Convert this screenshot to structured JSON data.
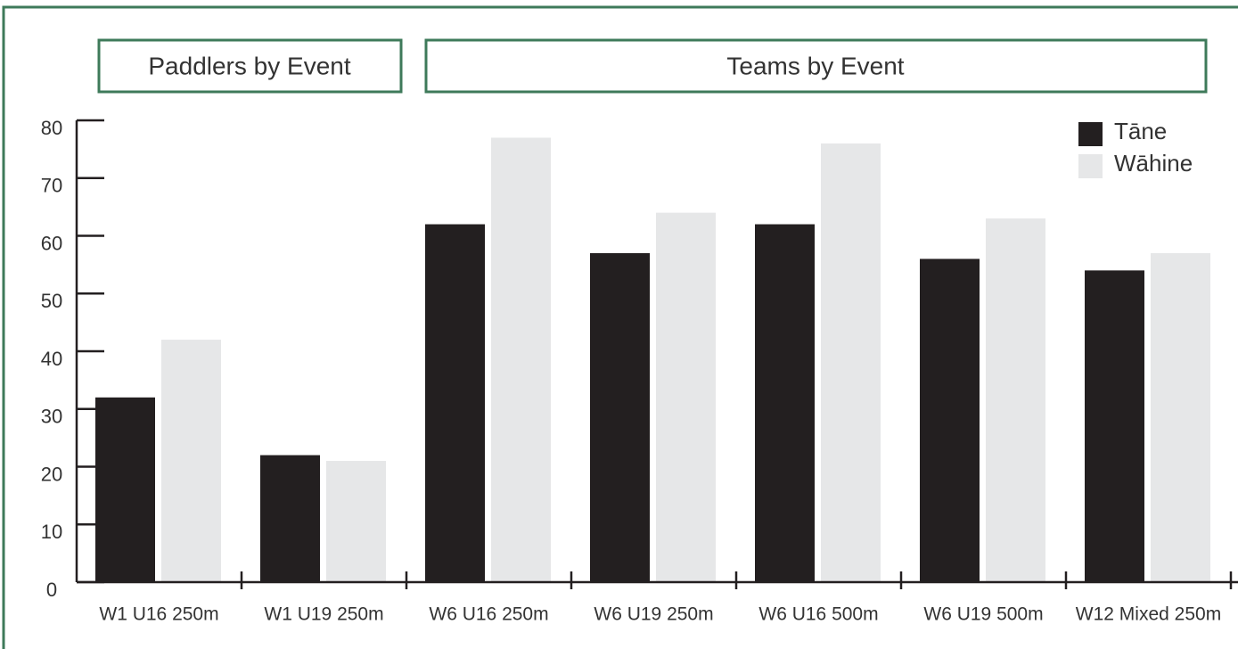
{
  "chart_data": {
    "type": "bar",
    "group_labels": [
      "Paddlers by Event",
      "Teams by Event"
    ],
    "categories": [
      "W1 U16 250m",
      "W1 U19 250m",
      "W6 U16 250m",
      "W6 U19 250m",
      "W6 U16 500m",
      "W6 U19 500m",
      "W12 Mixed 250m"
    ],
    "series": [
      {
        "name": "Tāne",
        "color": "#231f20",
        "values": [
          32,
          22,
          62,
          57,
          62,
          56,
          54
        ]
      },
      {
        "name": "Wāhine",
        "color": "#e6e7e8",
        "values": [
          42,
          21,
          77,
          64,
          76,
          63,
          57
        ]
      }
    ],
    "ylim": [
      0,
      80
    ],
    "yticks": [
      0,
      10,
      20,
      30,
      40,
      50,
      60,
      70,
      80
    ],
    "legend": "top-right",
    "grid": false
  }
}
